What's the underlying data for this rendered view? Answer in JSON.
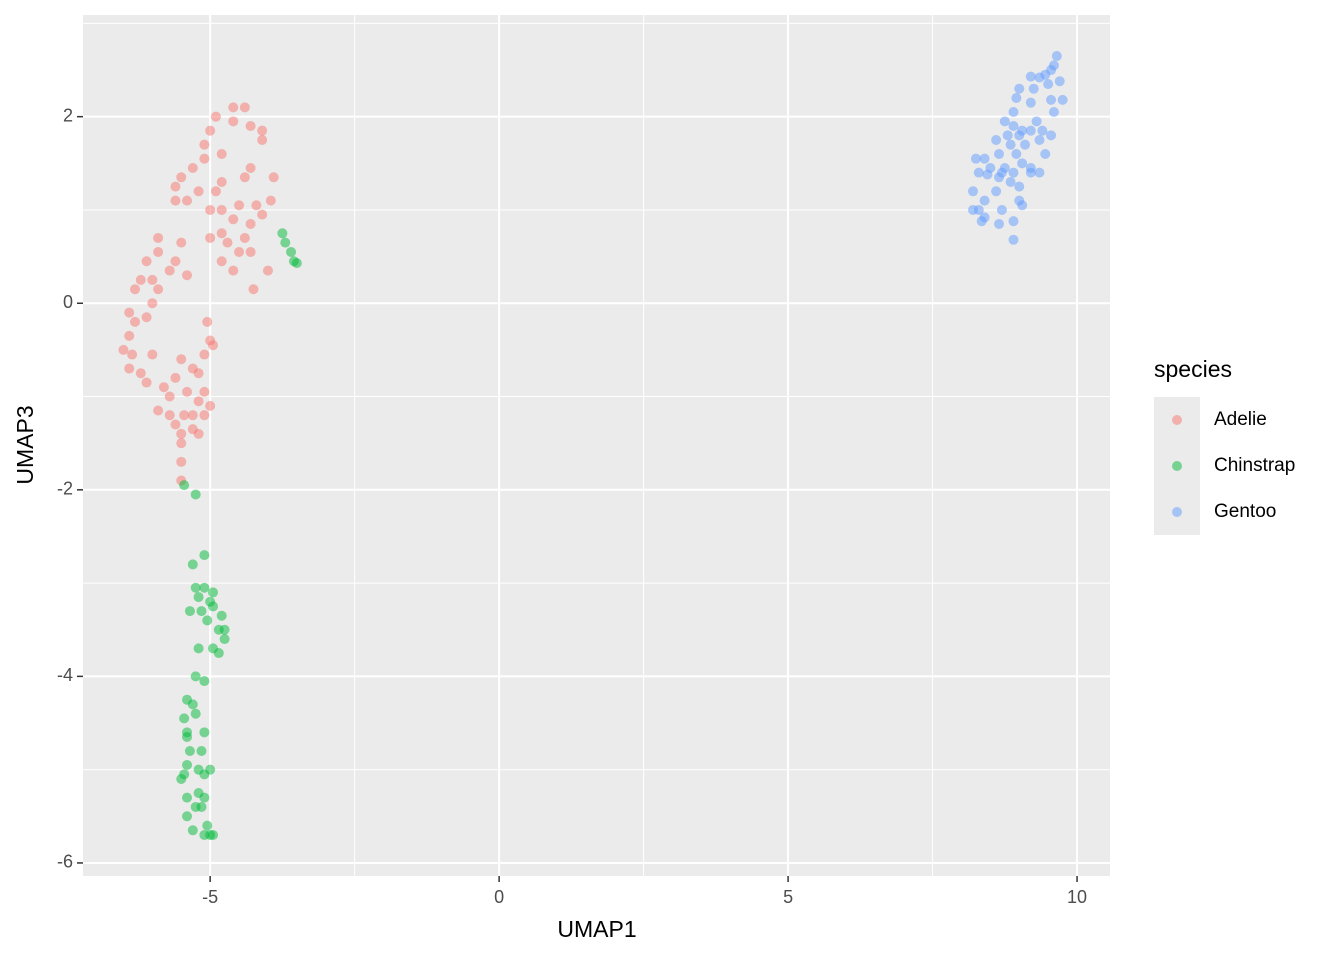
{
  "chart_data": {
    "type": "scatter",
    "x_label": "UMAP1",
    "y_label": "UMAP3",
    "legend_title": "species",
    "xlim": [
      -7.2,
      10.57
    ],
    "ylim": [
      -6.14,
      3.09
    ],
    "xticks": [
      -5,
      0,
      5,
      10
    ],
    "yticks": [
      -6,
      -4,
      -2,
      0,
      2
    ],
    "grid": true,
    "minor_grid": true,
    "legend": "right",
    "point_opacity": 0.5,
    "series": [
      {
        "name": "Adelie",
        "color": "#F8766D",
        "x": [
          -4.9,
          -4.4,
          -4.6,
          -4.3,
          -4.6,
          -5.0,
          -4.1,
          -4.1,
          -5.1,
          -4.8,
          -5.1,
          -4.3,
          -5.3,
          -5.5,
          -4.4,
          -4.8,
          -3.9,
          -4.9,
          -5.6,
          -5.2,
          -5.4,
          -5.6,
          -4.2,
          -4.5,
          -3.95,
          -5.0,
          -4.8,
          -4.1,
          -4.6,
          -4.3,
          -4.8,
          -5.0,
          -4.4,
          -4.7,
          -4.5,
          -4.3,
          -4.8,
          -4.6,
          -4.0,
          -4.25,
          -5.9,
          -5.5,
          -5.9,
          -5.6,
          -6.1,
          -5.7,
          -5.4,
          -6.0,
          -6.2,
          -6.3,
          -5.9,
          -6.0,
          -6.1,
          -6.4,
          -6.3,
          -6.4,
          -6.5,
          -6.35,
          -6.0,
          -5.5,
          -6.4,
          -6.2,
          -5.6,
          -6.1,
          -5.8,
          -5.4,
          -5.7,
          -5.9,
          -5.7,
          -5.45,
          -5.6,
          -5.3,
          -5.5,
          -5.2,
          -5.5,
          -5.5,
          -5.5,
          -5.05,
          -5.0,
          -4.95,
          -5.1,
          -5.3,
          -5.2,
          -5.1,
          -5.2,
          -5.0,
          -5.1,
          -5.3
        ],
        "values": [
          2.0,
          2.1,
          2.1,
          1.9,
          1.95,
          1.85,
          1.85,
          1.75,
          1.7,
          1.6,
          1.55,
          1.45,
          1.45,
          1.35,
          1.35,
          1.3,
          1.35,
          1.2,
          1.25,
          1.2,
          1.1,
          1.1,
          1.05,
          1.05,
          1.1,
          1.0,
          1.0,
          0.95,
          0.9,
          0.85,
          0.75,
          0.7,
          0.7,
          0.65,
          0.55,
          0.55,
          0.45,
          0.35,
          0.35,
          0.15,
          0.7,
          0.65,
          0.55,
          0.45,
          0.45,
          0.35,
          0.3,
          0.25,
          0.25,
          0.15,
          0.15,
          0.0,
          -0.15,
          -0.1,
          -0.2,
          -0.35,
          -0.5,
          -0.55,
          -0.55,
          -0.6,
          -0.7,
          -0.75,
          -0.8,
          -0.85,
          -0.9,
          -0.95,
          -1.0,
          -1.15,
          -1.2,
          -1.2,
          -1.3,
          -1.35,
          -1.4,
          -1.4,
          -1.5,
          -1.7,
          -1.9,
          -0.2,
          -0.4,
          -0.45,
          -0.55,
          -0.7,
          -0.75,
          -0.95,
          -1.05,
          -1.1,
          -1.2,
          -1.2
        ]
      },
      {
        "name": "Chinstrap",
        "color": "#00BA38",
        "x": [
          -3.75,
          -3.7,
          -3.6,
          -3.55,
          -3.5,
          -5.45,
          -5.25,
          -5.1,
          -5.3,
          -5.25,
          -5.1,
          -4.95,
          -5.0,
          -5.2,
          -5.35,
          -5.15,
          -4.95,
          -4.8,
          -5.05,
          -4.75,
          -4.85,
          -4.75,
          -5.2,
          -4.95,
          -4.85,
          -5.25,
          -5.1,
          -5.4,
          -5.3,
          -5.25,
          -5.45,
          -5.4,
          -5.4,
          -5.1,
          -5.35,
          -5.15,
          -5.4,
          -5.2,
          -5.0,
          -5.45,
          -5.5,
          -5.1,
          -5.2,
          -5.1,
          -5.4,
          -5.25,
          -5.15,
          -5.4,
          -5.05,
          -5.3,
          -5.1,
          -4.95,
          -5.0
        ],
        "values": [
          0.75,
          0.65,
          0.55,
          0.45,
          0.43,
          -1.95,
          -2.05,
          -2.7,
          -2.8,
          -3.05,
          -3.05,
          -3.1,
          -3.2,
          -3.15,
          -3.3,
          -3.3,
          -3.25,
          -3.35,
          -3.4,
          -3.5,
          -3.5,
          -3.6,
          -3.7,
          -3.7,
          -3.75,
          -4.0,
          -4.05,
          -4.25,
          -4.3,
          -4.4,
          -4.45,
          -4.6,
          -4.65,
          -4.6,
          -4.8,
          -4.8,
          -4.95,
          -5.0,
          -5.0,
          -5.05,
          -5.1,
          -5.05,
          -5.25,
          -5.3,
          -5.3,
          -5.4,
          -5.4,
          -5.5,
          -5.6,
          -5.65,
          -5.7,
          -5.7,
          -5.7
        ]
      },
      {
        "name": "Gentoo",
        "color": "#619CFF",
        "x": [
          9.65,
          9.6,
          9.55,
          9.45,
          9.35,
          9.2,
          9.5,
          9.7,
          9.0,
          9.25,
          9.75,
          9.55,
          8.95,
          9.2,
          9.6,
          8.9,
          9.3,
          8.75,
          8.9,
          9.05,
          9.2,
          9.4,
          8.8,
          9.0,
          9.35,
          9.55,
          8.6,
          8.85,
          9.1,
          9.45,
          8.65,
          8.95,
          8.4,
          8.25,
          8.5,
          8.75,
          9.05,
          9.2,
          8.3,
          8.45,
          8.7,
          8.9,
          9.2,
          9.35,
          8.65,
          8.85,
          9.0,
          8.2,
          8.6,
          8.4,
          9.0,
          9.05,
          8.2,
          8.3,
          8.7,
          8.4,
          8.35,
          8.65,
          8.9,
          8.9
        ],
        "values": [
          2.65,
          2.55,
          2.5,
          2.45,
          2.42,
          2.43,
          2.35,
          2.38,
          2.3,
          2.3,
          2.18,
          2.18,
          2.2,
          2.15,
          2.05,
          2.05,
          1.95,
          1.95,
          1.9,
          1.85,
          1.85,
          1.85,
          1.8,
          1.8,
          1.75,
          1.8,
          1.75,
          1.7,
          1.7,
          1.6,
          1.6,
          1.6,
          1.55,
          1.55,
          1.45,
          1.45,
          1.5,
          1.45,
          1.4,
          1.38,
          1.4,
          1.4,
          1.4,
          1.4,
          1.35,
          1.3,
          1.25,
          1.2,
          1.2,
          1.1,
          1.1,
          1.05,
          1.0,
          1.0,
          1.0,
          0.92,
          0.88,
          0.85,
          0.88,
          0.68
        ]
      }
    ]
  }
}
